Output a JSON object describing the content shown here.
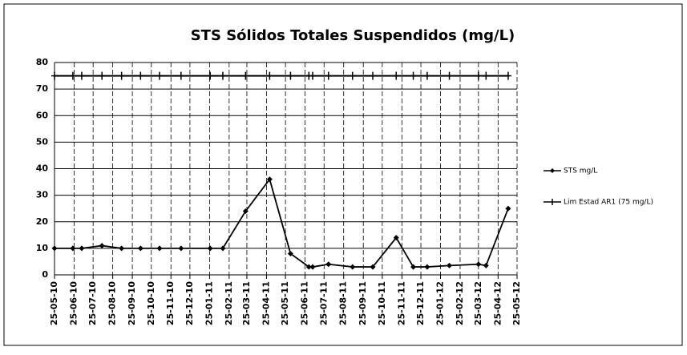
{
  "chart_data": {
    "type": "line",
    "title": "STS Sólidos Totales Suspendidos (mg/L)",
    "x": [
      "2010-05-25",
      "2010-06-23",
      "2010-07-07",
      "2010-08-08",
      "2010-09-08",
      "2010-10-08",
      "2010-11-07",
      "2010-12-11",
      "2011-01-26",
      "2011-02-15",
      "2011-03-23",
      "2011-04-30",
      "2011-06-02",
      "2011-07-01",
      "2011-07-07",
      "2011-08-01",
      "2011-09-08",
      "2011-10-10",
      "2011-11-16",
      "2011-12-13",
      "2012-01-04",
      "2012-02-08",
      "2012-03-25",
      "2012-04-06",
      "2012-05-11"
    ],
    "series": [
      {
        "name": "STS  mg/L",
        "color": "#000000",
        "marker": "diamond",
        "values": [
          10,
          10,
          10,
          11,
          10,
          10,
          10,
          10,
          10,
          10,
          24,
          36,
          8,
          3,
          3,
          4,
          3,
          3,
          14,
          3,
          3,
          3.5,
          4,
          3.5,
          25
        ]
      },
      {
        "name": "Lim Estad AR1 (75 mg/L)",
        "color": "#000000",
        "marker": "plus",
        "values": [
          75,
          75,
          75,
          75,
          75,
          75,
          75,
          75,
          75,
          75,
          75,
          75,
          75,
          75,
          75,
          75,
          75,
          75,
          75,
          75,
          75,
          75,
          75,
          75,
          75
        ]
      }
    ],
    "xlim": [
      "2010-05-25",
      "2012-05-25"
    ],
    "xticks": [
      {
        "value": "2010-05-25",
        "label": "25-05-10"
      },
      {
        "value": "2010-06-25",
        "label": "25-06-10"
      },
      {
        "value": "2010-07-25",
        "label": "25-07-10"
      },
      {
        "value": "2010-08-25",
        "label": "25-08-10"
      },
      {
        "value": "2010-09-25",
        "label": "25-09-10"
      },
      {
        "value": "2010-10-25",
        "label": "25-10-10"
      },
      {
        "value": "2010-11-25",
        "label": "25-11-10"
      },
      {
        "value": "2010-12-25",
        "label": "25-12-10"
      },
      {
        "value": "2011-01-25",
        "label": "25-01-11"
      },
      {
        "value": "2011-02-25",
        "label": "25-02-11"
      },
      {
        "value": "2011-03-25",
        "label": "25-03-11"
      },
      {
        "value": "2011-04-25",
        "label": "25-04-11"
      },
      {
        "value": "2011-05-25",
        "label": "25-05-11"
      },
      {
        "value": "2011-06-25",
        "label": "25-06-11"
      },
      {
        "value": "2011-07-25",
        "label": "25-07-11"
      },
      {
        "value": "2011-08-25",
        "label": "25-08-11"
      },
      {
        "value": "2011-09-25",
        "label": "25-09-11"
      },
      {
        "value": "2011-10-25",
        "label": "25-10-11"
      },
      {
        "value": "2011-11-25",
        "label": "25-11-11"
      },
      {
        "value": "2011-12-25",
        "label": "25-12-11"
      },
      {
        "value": "2012-01-25",
        "label": "25-01-12"
      },
      {
        "value": "2012-02-25",
        "label": "25-02-12"
      },
      {
        "value": "2012-03-25",
        "label": "25-03-12"
      },
      {
        "value": "2012-04-25",
        "label": "25-04-12"
      },
      {
        "value": "2012-05-25",
        "label": "25-05-12"
      }
    ],
    "ylim": [
      0,
      80
    ],
    "yticks": [
      0,
      10,
      20,
      30,
      40,
      50,
      60,
      70,
      80
    ],
    "grid": true,
    "legend": "right"
  }
}
